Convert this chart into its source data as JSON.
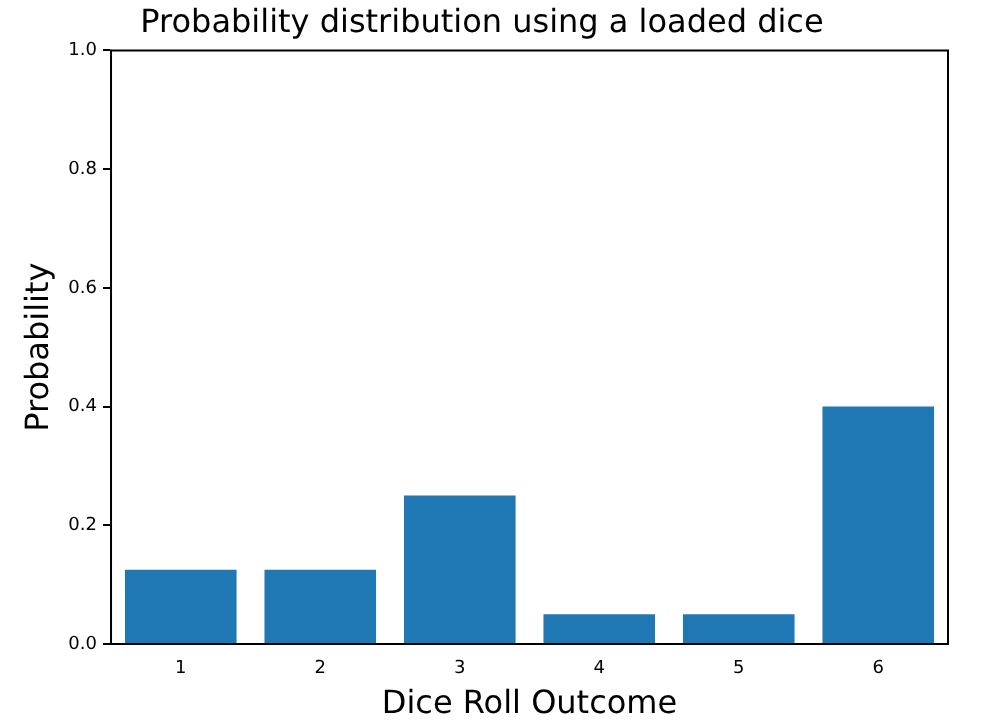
{
  "chart_data": {
    "type": "bar",
    "title": "Probability distribution using a loaded dice",
    "xlabel": "Dice Roll Outcome",
    "ylabel": "Probability",
    "categories": [
      "1",
      "2",
      "3",
      "4",
      "5",
      "6"
    ],
    "values": [
      0.125,
      0.125,
      0.25,
      0.05,
      0.05,
      0.4
    ],
    "color": "#1f77b4",
    "ylim": [
      0,
      1
    ],
    "yticks": [
      {
        "value": 0,
        "label": "0.0"
      },
      0.2,
      0.4,
      0.6,
      0.8,
      {
        "value": 1,
        "label": "1.0"
      }
    ],
    "grid": false,
    "legend": false
  }
}
